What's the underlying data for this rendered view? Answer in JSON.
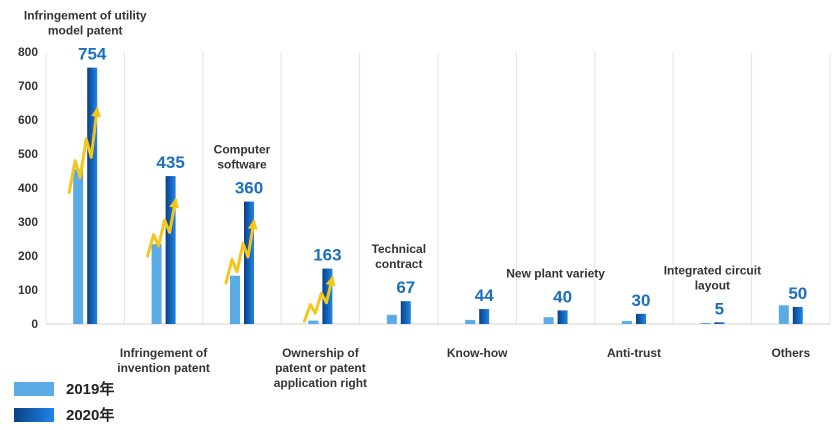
{
  "chart_data": {
    "type": "bar",
    "categories": [
      "Infringement of utility model patent",
      "Infringement of invention patent",
      "Computer software",
      "Ownership of patent or patent application right",
      "Technical contract",
      "Know-how",
      "New plant variety",
      "Anti-trust",
      "Integrated circuit layout",
      "Others"
    ],
    "category_label_lines": [
      [
        "Infringement of utility",
        "model patent"
      ],
      [
        "Infringement of",
        "invention patent"
      ],
      [
        "Computer",
        "software"
      ],
      [
        "Ownership of",
        "patent or patent",
        "application right"
      ],
      [
        "Technical",
        "contract"
      ],
      [
        "Know-how"
      ],
      [
        "New plant variety"
      ],
      [
        "Anti-trust"
      ],
      [
        "Integrated circuit",
        "layout"
      ],
      [
        "Others"
      ]
    ],
    "series": [
      {
        "name": "2019年",
        "values": [
          455,
          235,
          142,
          10,
          27,
          12,
          20,
          9,
          3,
          55
        ]
      },
      {
        "name": "2020年",
        "values": [
          754,
          435,
          360,
          163,
          67,
          44,
          40,
          30,
          5,
          50
        ]
      }
    ],
    "data_labels": [
      "754",
      "435",
      "360",
      "163",
      "67",
      "44",
      "40",
      "30",
      "5",
      "50"
    ],
    "yticks": [
      0,
      100,
      200,
      300,
      400,
      500,
      600,
      700,
      800
    ],
    "ylim": [
      0,
      800
    ],
    "grid": "vertical",
    "legend_position": "bottom-left",
    "growth_arrows_on": [
      0,
      1,
      2,
      3
    ],
    "colors": {
      "series_2019": "#5aabe6",
      "series_2020": "#0d63c4",
      "series_2020_dark": "#0a3f86",
      "value_label": "#1a6fbf",
      "arrow": "#f5c518",
      "grid": "#e3e3e3"
    }
  }
}
